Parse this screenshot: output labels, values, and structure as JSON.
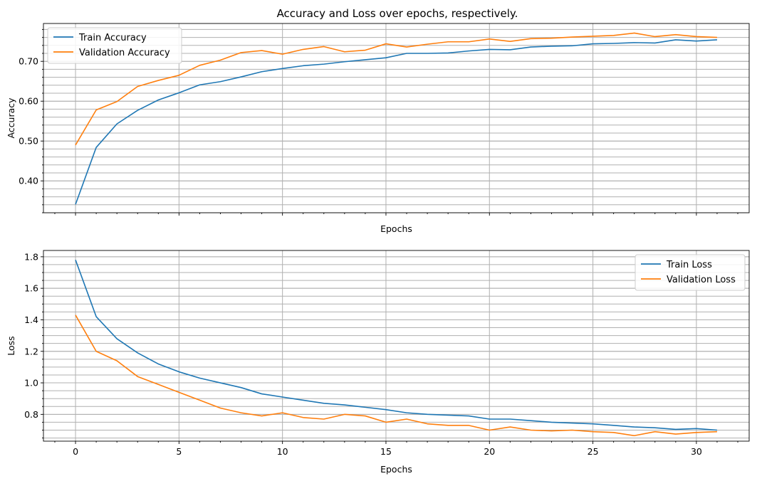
{
  "figure": {
    "title": "Accuracy and Loss over epochs, respectively."
  },
  "chart_data": [
    {
      "type": "line",
      "title": "Accuracy and Loss over epochs, respectively.",
      "xlabel": "Epochs",
      "ylabel": "Accuracy",
      "xlim": [
        -1.55,
        32.55
      ],
      "ylim": [
        0.32,
        0.795
      ],
      "xticks": [
        0,
        5,
        10,
        15,
        20,
        25,
        30
      ],
      "xtick_labels_visible": false,
      "yticks": [
        0.4,
        0.5,
        0.6,
        0.7
      ],
      "y_minor_step": 0.02,
      "x_minor_step": 1,
      "grid": true,
      "grid_minor_y": true,
      "legend": "top-left",
      "x": [
        0,
        1,
        2,
        3,
        4,
        5,
        6,
        7,
        8,
        9,
        10,
        11,
        12,
        13,
        14,
        15,
        16,
        17,
        18,
        19,
        20,
        21,
        22,
        23,
        24,
        25,
        26,
        27,
        28,
        29,
        30,
        31
      ],
      "series": [
        {
          "name": "Train Accuracy",
          "color": "#1f77b4",
          "values": [
            0.341,
            0.484,
            0.543,
            0.577,
            0.603,
            0.621,
            0.641,
            0.649,
            0.661,
            0.674,
            0.682,
            0.689,
            0.693,
            0.699,
            0.704,
            0.709,
            0.72,
            0.72,
            0.721,
            0.726,
            0.73,
            0.729,
            0.736,
            0.738,
            0.739,
            0.744,
            0.745,
            0.747,
            0.746,
            0.754,
            0.751,
            0.754
          ]
        },
        {
          "name": "Validation Accuracy",
          "color": "#ff7f0e",
          "values": [
            0.49,
            0.578,
            0.599,
            0.637,
            0.652,
            0.665,
            0.69,
            0.703,
            0.722,
            0.727,
            0.718,
            0.73,
            0.737,
            0.724,
            0.728,
            0.744,
            0.736,
            0.743,
            0.749,
            0.749,
            0.756,
            0.75,
            0.757,
            0.758,
            0.761,
            0.763,
            0.765,
            0.771,
            0.762,
            0.767,
            0.762,
            0.76
          ]
        }
      ]
    },
    {
      "type": "line",
      "xlabel": "Epochs",
      "ylabel": "Loss",
      "xlim": [
        -1.55,
        32.55
      ],
      "ylim": [
        0.63,
        1.84
      ],
      "xticks": [
        0,
        5,
        10,
        15,
        20,
        25,
        30
      ],
      "yticks": [
        0.8,
        1.0,
        1.2,
        1.4,
        1.6,
        1.8
      ],
      "y_minor_step": 0.05,
      "x_minor_step": 1,
      "grid": true,
      "grid_minor_y": true,
      "legend": "top-right",
      "x": [
        0,
        1,
        2,
        3,
        4,
        5,
        6,
        7,
        8,
        9,
        10,
        11,
        12,
        13,
        14,
        15,
        16,
        17,
        18,
        19,
        20,
        21,
        22,
        23,
        24,
        25,
        26,
        27,
        28,
        29,
        30,
        31
      ],
      "series": [
        {
          "name": "Train Loss",
          "color": "#1f77b4",
          "values": [
            1.78,
            1.42,
            1.28,
            1.19,
            1.12,
            1.07,
            1.03,
            1.0,
            0.97,
            0.93,
            0.91,
            0.89,
            0.87,
            0.86,
            0.845,
            0.83,
            0.81,
            0.8,
            0.795,
            0.79,
            0.77,
            0.77,
            0.76,
            0.75,
            0.745,
            0.74,
            0.73,
            0.72,
            0.715,
            0.705,
            0.71,
            0.7
          ]
        },
        {
          "name": "Validation Loss",
          "color": "#ff7f0e",
          "values": [
            1.43,
            1.2,
            1.14,
            1.04,
            0.99,
            0.94,
            0.89,
            0.84,
            0.81,
            0.79,
            0.81,
            0.78,
            0.77,
            0.8,
            0.79,
            0.75,
            0.77,
            0.74,
            0.73,
            0.73,
            0.7,
            0.72,
            0.7,
            0.695,
            0.7,
            0.69,
            0.685,
            0.665,
            0.69,
            0.675,
            0.685,
            0.69
          ]
        }
      ]
    }
  ]
}
